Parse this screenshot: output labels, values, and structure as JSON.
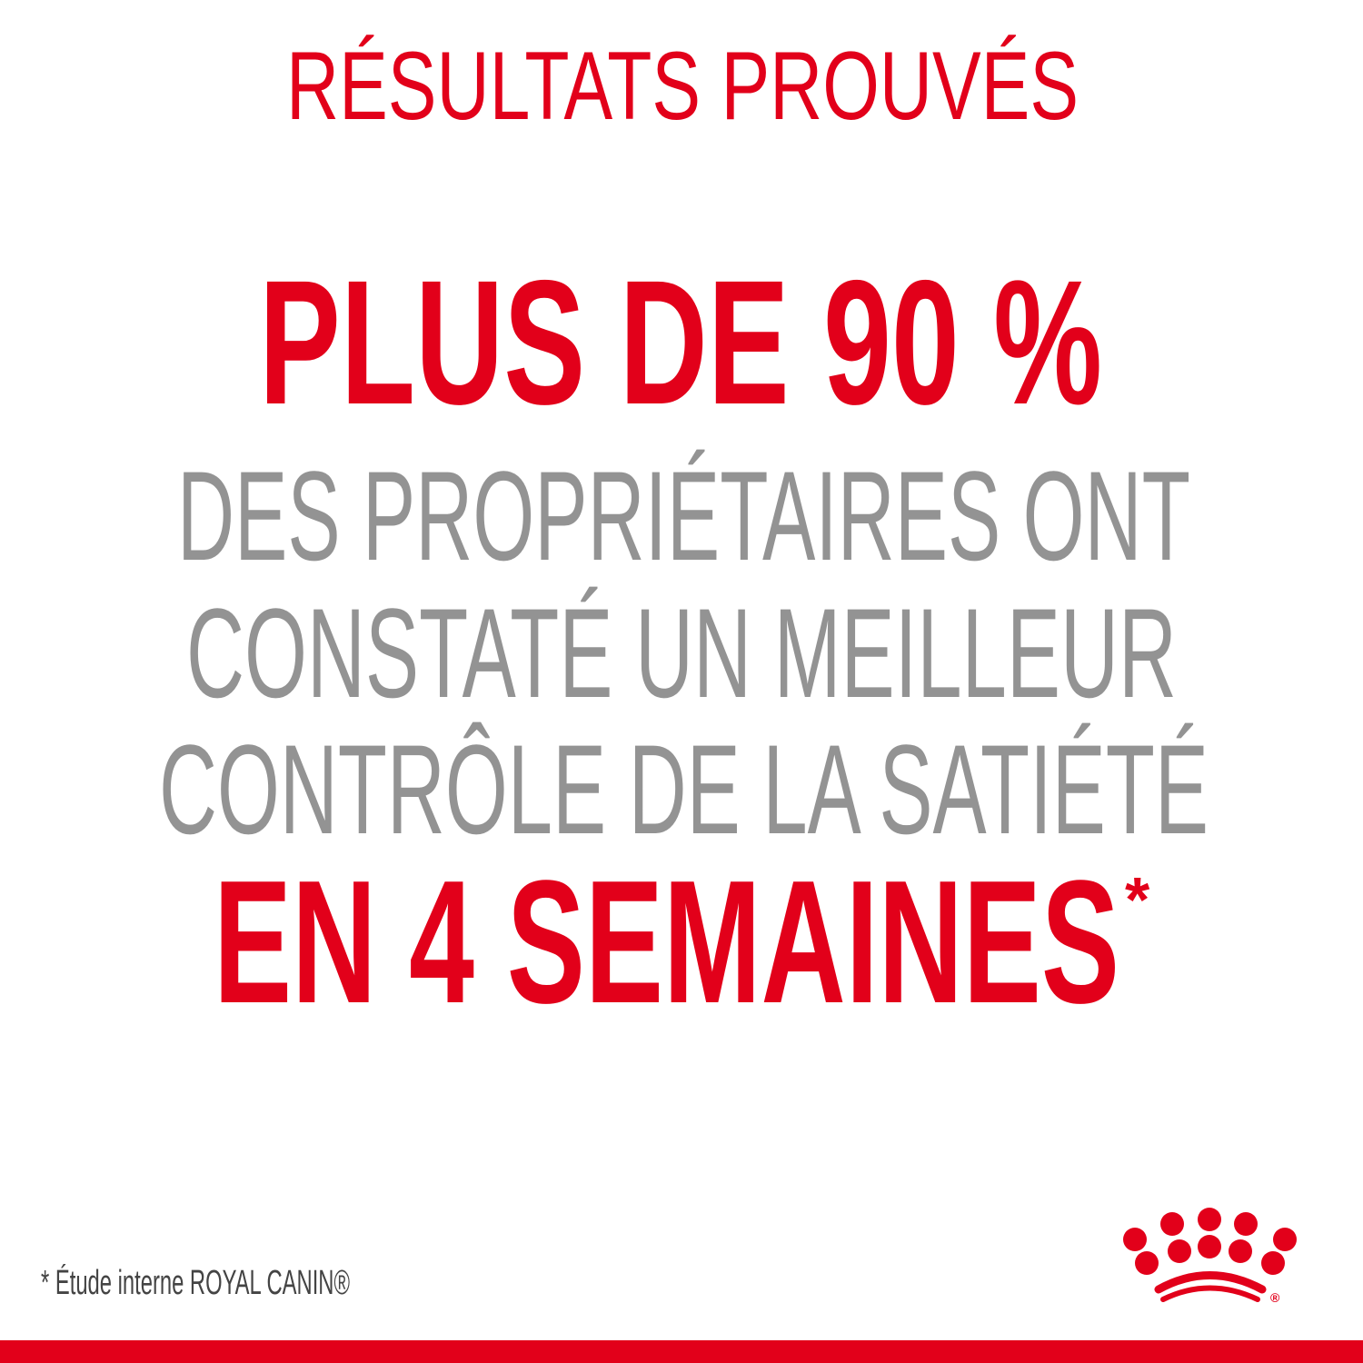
{
  "title": "RÉSULTATS PROUVÉS",
  "headline": "PLUS DE 90 %",
  "body_lines": [
    "DES PROPRIÉTAIRES ONT",
    "CONSTATÉ UN MEILLEUR",
    "CONTRÔLE DE LA SATIÉTÉ"
  ],
  "emphasis": "EN 4 SEMAINES",
  "emphasis_mark": "*",
  "footnote": "* Étude interne ROYAL CANIN®",
  "logo": {
    "name": "royal-canin-crown-logo",
    "mark": "®"
  },
  "colors": {
    "brand_red": "#e2001a",
    "gray_text": "#939393",
    "background": "#ffffff"
  }
}
